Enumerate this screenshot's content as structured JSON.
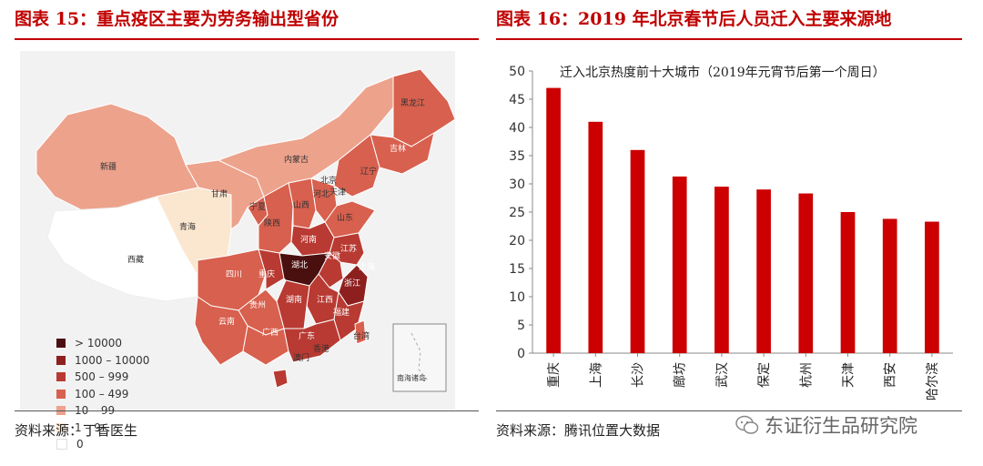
{
  "left_panel": {
    "title": "图表 15：重点疫区主要为劳务输出型省份",
    "source": "资料来源：丁香医生",
    "legend": [
      {
        "label": "> 10000",
        "color": "#4a0f0f"
      },
      {
        "label": "1000 – 10000",
        "color": "#8e1f1f"
      },
      {
        "label": "500 – 999",
        "color": "#b83a32"
      },
      {
        "label": "100 – 499",
        "color": "#d8604e"
      },
      {
        "label": "10 – 99",
        "color": "#eda28c"
      },
      {
        "label": "1 – 9",
        "color": "#fbe6cf"
      },
      {
        "label": "0",
        "color": "#ffffff"
      }
    ],
    "provinces": [
      "黑龙江",
      "吉林",
      "辽宁",
      "内蒙古",
      "新疆",
      "北京",
      "天津",
      "河北",
      "甘肃",
      "宁夏",
      "山西",
      "山东",
      "青海",
      "陕西",
      "河南",
      "江苏",
      "安徽",
      "上海",
      "西藏",
      "四川",
      "重庆",
      "湖北",
      "浙江",
      "贵州",
      "湖南",
      "江西",
      "福建",
      "云南",
      "广西",
      "广东",
      "台湾",
      "香港",
      "澳门",
      "南海诸岛"
    ]
  },
  "right_panel": {
    "title": "图表 16：2019 年北京春节后人员迁入主要来源地",
    "source": "资料来源：腾讯位置大数据"
  },
  "watermark": "东证衍生品研究院",
  "colors": {
    "accent": "#c00000",
    "bar": "#cc0000"
  },
  "chart_data": {
    "type": "bar",
    "title": "迁入北京热度前十大城市（2019年元宵节后第一个周日）",
    "categories": [
      "重庆",
      "上海",
      "长沙",
      "廊坊",
      "武汉",
      "保定",
      "杭州",
      "天津",
      "西安",
      "哈尔滨"
    ],
    "values": [
      47,
      41,
      36,
      31.3,
      29.5,
      29,
      28.3,
      25,
      23.8,
      23.3
    ],
    "ylim": [
      0,
      50
    ],
    "yticks": [
      0,
      5,
      10,
      15,
      20,
      25,
      30,
      35,
      40,
      45,
      50
    ],
    "xlabel": "",
    "ylabel": "",
    "grid": false
  }
}
